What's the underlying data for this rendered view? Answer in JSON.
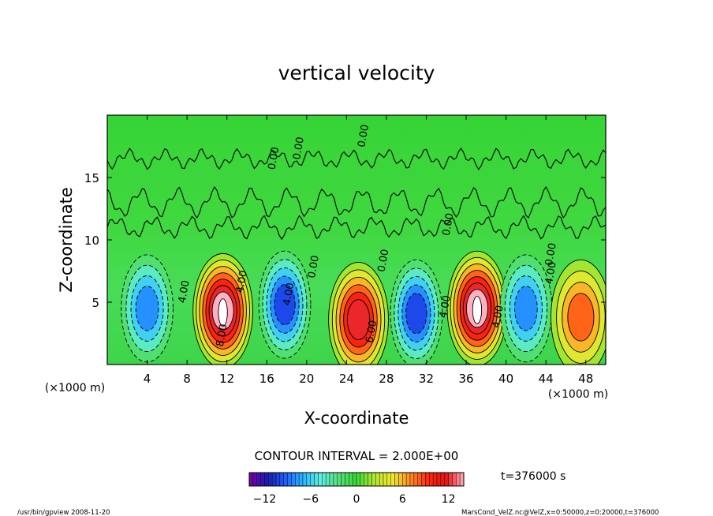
{
  "chart_data": {
    "type": "heatmap",
    "title": "vertical velocity",
    "xlabel": "X-coordinate",
    "ylabel": "Z-coordinate",
    "x_unit_label": "(×1000 m)",
    "x_unit_label_right": "(×1000 m)",
    "xlim": [
      0,
      50
    ],
    "ylim": [
      0,
      20
    ],
    "x_ticks": [
      4,
      8,
      12,
      16,
      20,
      24,
      28,
      32,
      36,
      40,
      44,
      48
    ],
    "y_ticks": [
      5,
      10,
      15
    ],
    "contour_interval_label": "CONTOUR INTERVAL = 2.000E+00",
    "time_label": "t=376000 s",
    "colorbar": {
      "min": -14,
      "max": 14,
      "ticks": [
        -12,
        -6,
        0,
        6,
        12
      ],
      "colors": [
        "#7a00a0",
        "#1a1ab4",
        "#1f5cff",
        "#29b8ff",
        "#5ef0e0",
        "#55e07a",
        "#38d838",
        "#b4e830",
        "#f0e830",
        "#ff9020",
        "#ff2a10",
        "#e81010",
        "#ffb0c0"
      ]
    },
    "features": [
      {
        "kind": "updraft",
        "x": 11.6,
        "z": 4.3,
        "peak": 14
      },
      {
        "kind": "downdraft",
        "x": 17.8,
        "z": 4.8,
        "peak": -10
      },
      {
        "kind": "updraft",
        "x": 25.2,
        "z": 3.6,
        "peak": 11
      },
      {
        "kind": "downdraft",
        "x": 31.0,
        "z": 4.1,
        "peak": -9
      },
      {
        "kind": "updraft",
        "x": 37.1,
        "z": 4.5,
        "peak": 14
      },
      {
        "kind": "downdraft",
        "x": 42.0,
        "z": 4.5,
        "peak": -7
      },
      {
        "kind": "downdraft",
        "x": 4.0,
        "z": 4.5,
        "peak": -7
      },
      {
        "kind": "updraft",
        "x": 47.5,
        "z": 3.8,
        "peak": 7
      }
    ],
    "contour_labels": [
      {
        "text": "0.00",
        "x": 17.0,
        "z": 16.5
      },
      {
        "text": "0.00",
        "x": 19.5,
        "z": 17.3
      },
      {
        "text": "0.00",
        "x": 26.0,
        "z": 18.3
      },
      {
        "text": "0.00",
        "x": 34.5,
        "z": 11.2
      },
      {
        "text": "0.00",
        "x": 21.0,
        "z": 7.8
      },
      {
        "text": "0.00",
        "x": 28.0,
        "z": 8.3
      },
      {
        "text": "0.00",
        "x": 44.8,
        "z": 8.8
      },
      {
        "text": "4.00",
        "x": 8.0,
        "z": 5.8
      },
      {
        "text": "4.00",
        "x": 13.8,
        "z": 6.6
      },
      {
        "text": "4.00",
        "x": 34.2,
        "z": 4.6
      },
      {
        "text": "4.00",
        "x": 44.8,
        "z": 7.3
      },
      {
        "text": "8.00",
        "x": 11.8,
        "z": 2.3
      },
      {
        "text": "6.00",
        "x": 26.8,
        "z": 2.6
      },
      {
        "text": "4.00",
        "x": 39.5,
        "z": 3.8
      },
      {
        "text": "4.00",
        "x": 18.5,
        "z": 5.6
      }
    ]
  },
  "footer": {
    "left": "/usr/bin/gpview   2008-11-20",
    "right": "MarsCond_VelZ.nc@VelZ,x=0:50000,z=0:20000,t=376000"
  }
}
